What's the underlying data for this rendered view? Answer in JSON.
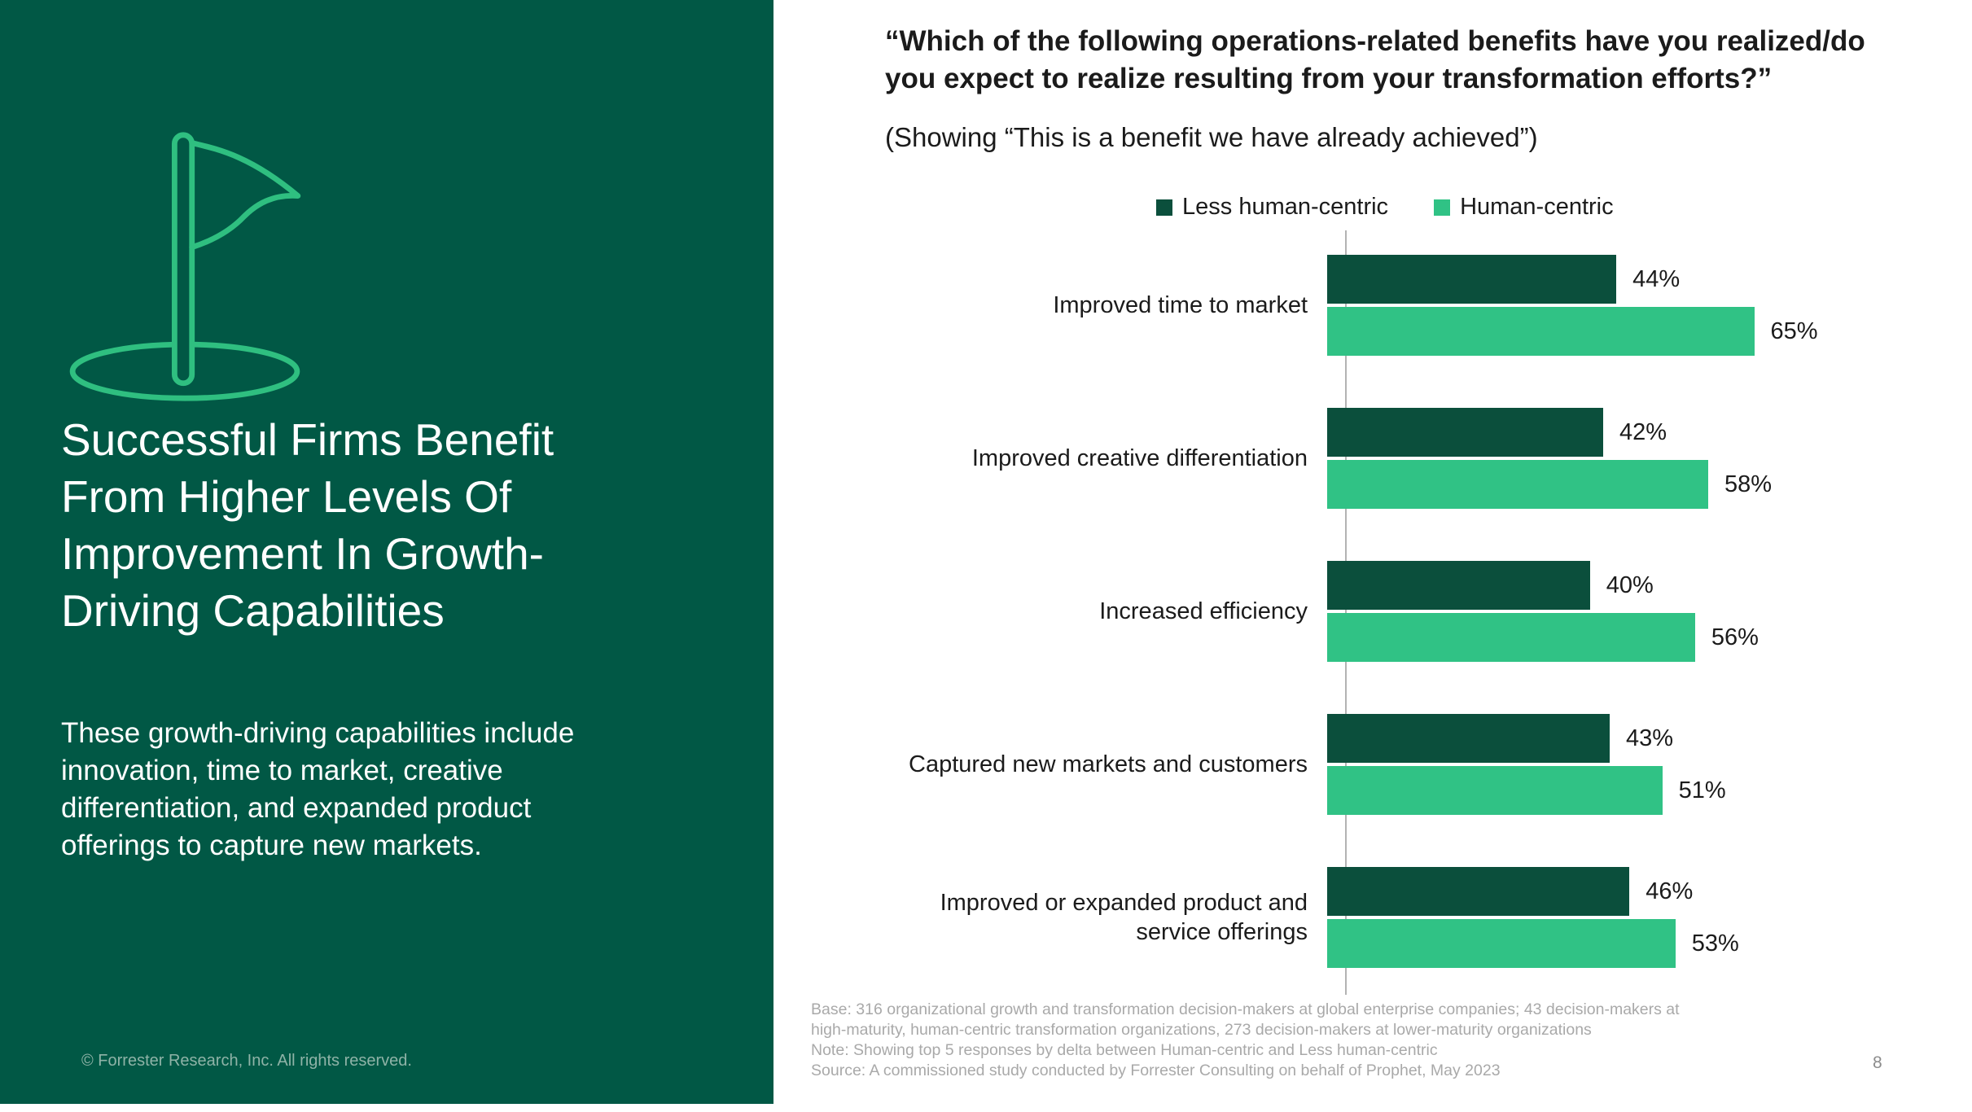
{
  "page": {
    "number": "8"
  },
  "left_panel": {
    "background_color": "#015845",
    "icon": "golf-flag-in-hole-icon",
    "icon_color": "#2FBF80",
    "title": "Successful Firms Benefit\nFrom Higher Levels Of\nImprovement In Growth-\nDriving Capabilities",
    "body": "These growth-driving capabilities include\ninnovation, time to market, creative\ndifferentiation, and expanded product\nofferings to capture new markets.",
    "footer": "© Forrester Research, Inc. All rights reserved."
  },
  "main": {
    "question_title": "“Which of the following operations-related benefits have you realized/do\nyou expect to realize resulting from your transformation efforts?”",
    "subtitle": "(Showing “This is a benefit we have already achieved”)",
    "footnotes": [
      "Base: 316 organizational growth and transformation decision-makers at global enterprise companies; 43 decision-makers at",
      "high-maturity, human-centric transformation organizations, 273 decision-makers at lower-maturity organizations",
      "Note: Showing top 5 responses by delta between Human-centric and Less human-centric",
      "Source: A commissioned study conducted by Forrester Consulting on behalf of Prophet, May 2023"
    ]
  },
  "chart_data": {
    "type": "bar",
    "orientation": "horizontal",
    "title": "",
    "xlabel": "",
    "ylabel": "",
    "xlim": [
      0,
      70
    ],
    "grid": false,
    "legend_position": "top",
    "value_suffix": "%",
    "categories": [
      "Improved time to market",
      "Improved creative differentiation",
      "Increased efficiency",
      "Captured new markets and customers",
      "Improved or expanded product and\nservice offerings"
    ],
    "series": [
      {
        "name": "Less human-centric",
        "color": "#0B4F3C",
        "values": [
          44,
          42,
          40,
          43,
          46
        ]
      },
      {
        "name": "Human-centric",
        "color": "#30C285",
        "values": [
          65,
          58,
          56,
          51,
          53
        ]
      }
    ]
  }
}
